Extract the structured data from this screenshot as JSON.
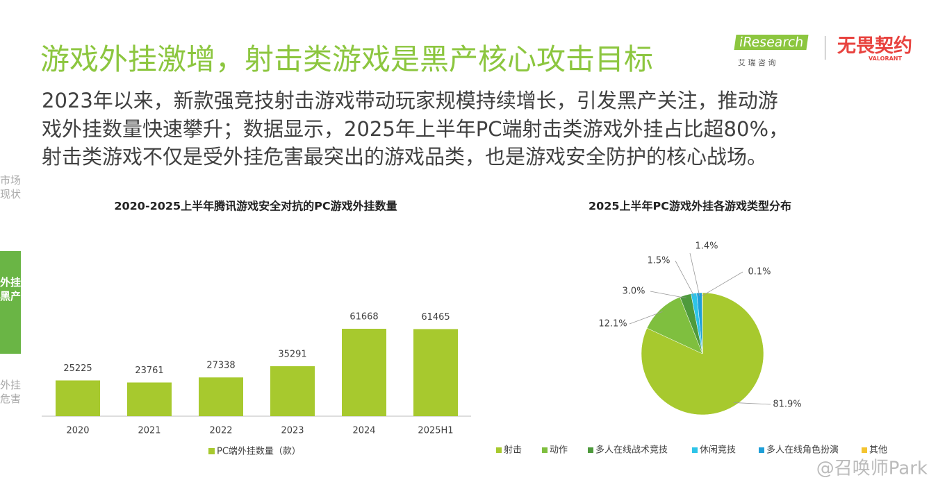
{
  "header": {
    "title": "游戏外挂激增，射击类游戏是黑产核心攻击目标",
    "body": [
      "2023年以来，新款强竞技射击游戏带动玩家规模持续增长，引发黑产关注，推动游",
      "戏外挂数量快速攀升；数据显示，2025年上半年PC端射击类游戏外挂占比超80%，",
      "射击类游戏不仅是受外挂危害最突出的游戏品类，也是游戏安全防护的核心战场。"
    ]
  },
  "logos": {
    "iresearch": "iResearch",
    "iresearch_cn": "艾 瑞 咨 询",
    "valorant_cn": "无畏契约",
    "valorant": "VALORANT"
  },
  "sidebar": [
    "市场现状",
    "外挂黑产",
    "外挂危害"
  ],
  "watermark": "@召唤师Park",
  "chart_data": [
    {
      "type": "bar",
      "title": "2020-2025上半年腾讯游戏安全对抗的PC游戏外挂数量",
      "categories": [
        "2020",
        "2021",
        "2022",
        "2023",
        "2024",
        "2025H1"
      ],
      "series": [
        {
          "name": "PC端外挂数量（款）",
          "color": "#a7c92e",
          "values": [
            25225,
            23761,
            27338,
            35291,
            61668,
            61465
          ]
        }
      ],
      "ylim": [
        0,
        70000
      ]
    },
    {
      "type": "pie",
      "title": "2025上半年PC游戏外挂各游戏类型分布",
      "categories": [
        "射击",
        "动作",
        "多人在线战术竞技",
        "休闲竞技",
        "多人在线角色扮演",
        "其他"
      ],
      "values": [
        81.9,
        12.1,
        3.0,
        1.5,
        1.4,
        0.1
      ],
      "value_labels": [
        "81.9%",
        "12.1%",
        "3.0%",
        "1.5%",
        "1.4%",
        "0.1%"
      ],
      "colors": [
        "#a7c92e",
        "#7fbf3f",
        "#4e9a3c",
        "#2ec4e8",
        "#1e9fd8",
        "#f4c430"
      ]
    }
  ]
}
